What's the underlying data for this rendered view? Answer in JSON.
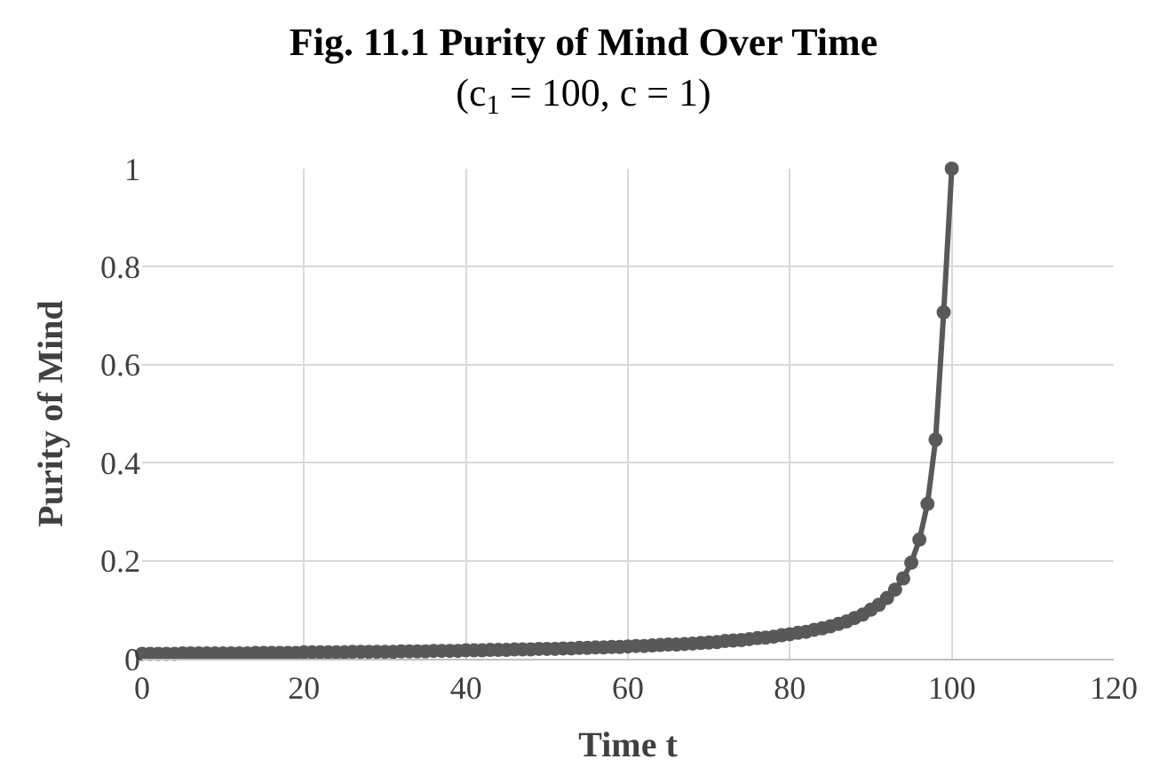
{
  "chart_data": {
    "type": "line",
    "title": "Fig. 11.1 Purity of Mind Over Time",
    "subtitle": "(c$_{1}$ = 100, c = 1)",
    "xlabel": "Time t",
    "ylabel": "Purity of Mind",
    "x": [
      0,
      1,
      2,
      3,
      4,
      5,
      6,
      7,
      8,
      9,
      10,
      11,
      12,
      13,
      14,
      15,
      16,
      17,
      18,
      19,
      20,
      21,
      22,
      23,
      24,
      25,
      26,
      27,
      28,
      29,
      30,
      31,
      32,
      33,
      34,
      35,
      36,
      37,
      38,
      39,
      40,
      41,
      42,
      43,
      44,
      45,
      46,
      47,
      48,
      49,
      50,
      51,
      52,
      53,
      54,
      55,
      56,
      57,
      58,
      59,
      60,
      61,
      62,
      63,
      64,
      65,
      66,
      67,
      68,
      69,
      70,
      71,
      72,
      73,
      74,
      75,
      76,
      77,
      78,
      79,
      80,
      81,
      82,
      83,
      84,
      85,
      86,
      87,
      88,
      89,
      90,
      91,
      92,
      93,
      94,
      95,
      96,
      97,
      98,
      99,
      100
    ],
    "series": [
      {
        "color": "#595959",
        "values": [
          0.01,
          0.01,
          0.01,
          0.01,
          0.01,
          0.011,
          0.011,
          0.011,
          0.011,
          0.011,
          0.011,
          0.011,
          0.011,
          0.011,
          0.012,
          0.012,
          0.012,
          0.012,
          0.012,
          0.012,
          0.013,
          0.013,
          0.013,
          0.013,
          0.013,
          0.013,
          0.014,
          0.014,
          0.014,
          0.014,
          0.014,
          0.014,
          0.015,
          0.015,
          0.015,
          0.015,
          0.016,
          0.016,
          0.016,
          0.016,
          0.017,
          0.017,
          0.017,
          0.018,
          0.018,
          0.018,
          0.019,
          0.019,
          0.019,
          0.02,
          0.02,
          0.02,
          0.021,
          0.021,
          0.022,
          0.022,
          0.023,
          0.023,
          0.024,
          0.024,
          0.025,
          0.026,
          0.026,
          0.027,
          0.028,
          0.029,
          0.029,
          0.03,
          0.031,
          0.032,
          0.033,
          0.034,
          0.036,
          0.037,
          0.038,
          0.04,
          0.042,
          0.043,
          0.045,
          0.048,
          0.05,
          0.053,
          0.055,
          0.059,
          0.062,
          0.066,
          0.071,
          0.076,
          0.083,
          0.09,
          0.1,
          0.11,
          0.124,
          0.141,
          0.164,
          0.196,
          0.243,
          0.316,
          0.447,
          0.707,
          1.0
        ]
      }
    ],
    "xlim": [
      0,
      120
    ],
    "xticks": [
      0,
      20,
      40,
      60,
      80,
      100,
      120
    ],
    "ylim": [
      0,
      1
    ],
    "yticks": [
      0,
      0.2,
      0.4,
      0.6,
      0.8,
      1
    ],
    "grid": true,
    "marker": "circle",
    "line_style": "solid"
  }
}
